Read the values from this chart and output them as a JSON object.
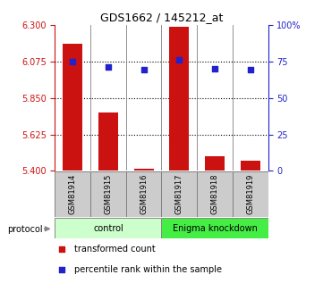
{
  "title": "GDS1662 / 145212_at",
  "samples": [
    "GSM81914",
    "GSM81915",
    "GSM81916",
    "GSM81917",
    "GSM81918",
    "GSM81919"
  ],
  "bar_values": [
    6.185,
    5.76,
    5.415,
    6.285,
    5.49,
    5.465
  ],
  "percentile_values": [
    75,
    71,
    69,
    76,
    70,
    69
  ],
  "bar_color": "#cc1111",
  "dot_color": "#2222cc",
  "ylim_left": [
    5.4,
    6.3
  ],
  "ylim_right": [
    0,
    100
  ],
  "yticks_left": [
    5.4,
    5.625,
    5.85,
    6.075,
    6.3
  ],
  "yticks_right": [
    0,
    25,
    50,
    75,
    100
  ],
  "ytick_labels_right": [
    "0",
    "25",
    "50",
    "75",
    "100%"
  ],
  "hgrid_ticks": [
    5.625,
    5.85,
    6.075
  ],
  "groups": [
    {
      "label": "control",
      "start": 0,
      "end": 3,
      "color": "#ccffcc"
    },
    {
      "label": "Enigma knockdown",
      "start": 3,
      "end": 6,
      "color": "#44ee44"
    }
  ],
  "protocol_label": "protocol",
  "legend_bar_label": "transformed count",
  "legend_dot_label": "percentile rank within the sample",
  "bar_width": 0.55,
  "base_value": 5.4,
  "sample_box_color": "#cccccc",
  "fig_width": 3.61,
  "fig_height": 3.45,
  "dpi": 100
}
